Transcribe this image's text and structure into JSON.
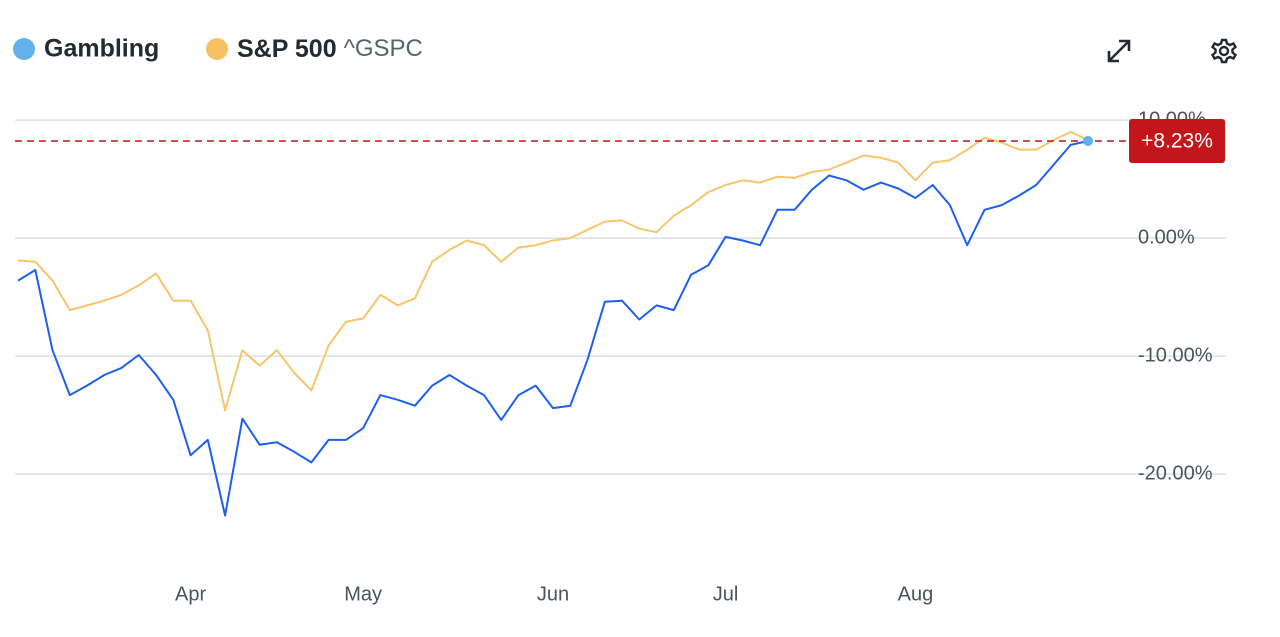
{
  "chart_data": {
    "type": "line",
    "categories": [
      null,
      null,
      null,
      null,
      null,
      null,
      null,
      null,
      null,
      null,
      "Apr",
      null,
      null,
      null,
      null,
      null,
      null,
      null,
      null,
      null,
      "May",
      null,
      null,
      null,
      null,
      null,
      null,
      null,
      null,
      null,
      null,
      "Jun",
      null,
      null,
      null,
      null,
      null,
      null,
      null,
      null,
      null,
      "Jul",
      null,
      null,
      null,
      null,
      null,
      null,
      null,
      null,
      null,
      null,
      "Aug",
      null,
      null,
      null,
      null,
      null,
      null,
      null,
      null,
      null,
      null
    ],
    "series": [
      {
        "name": "Gambling",
        "color": "#1f5ff0",
        "legend_color": "#62b1ea",
        "values": [
          -3.6,
          -2.7,
          -9.5,
          -13.3,
          -12.5,
          -11.6,
          -11.0,
          -9.9,
          -11.6,
          -13.7,
          -18.4,
          -17.1,
          -23.5,
          -15.3,
          -17.5,
          -17.3,
          -18.1,
          -19.0,
          -17.1,
          -17.1,
          -16.1,
          -13.3,
          -13.7,
          -14.2,
          -12.5,
          -11.6,
          -12.5,
          -13.3,
          -15.4,
          -13.3,
          -12.5,
          -14.4,
          -14.2,
          -10.3,
          -5.4,
          -5.3,
          -6.9,
          -5.7,
          -6.1,
          -3.1,
          -2.3,
          0.1,
          -0.2,
          -0.6,
          2.4,
          2.4,
          4.1,
          5.3,
          4.9,
          4.1,
          4.7,
          4.2,
          3.4,
          4.5,
          2.8,
          -0.6,
          2.4,
          2.8,
          3.6,
          4.5,
          6.2,
          7.9,
          8.23
        ]
      },
      {
        "name": "S&P 500",
        "symbol": "^GSPC",
        "color": "#f8c46c",
        "legend_color": "#f7c163",
        "values": [
          -1.9,
          -2.0,
          -3.6,
          -6.1,
          -5.7,
          -5.3,
          -4.8,
          -4.0,
          -3.0,
          -5.3,
          -5.3,
          -7.8,
          -14.6,
          -9.5,
          -10.8,
          -9.5,
          -11.4,
          -12.9,
          -9.1,
          -7.1,
          -6.8,
          -4.8,
          -5.7,
          -5.1,
          -2.0,
          -1.0,
          -0.2,
          -0.6,
          -2.0,
          -0.8,
          -0.6,
          -0.2,
          0.0,
          0.7,
          1.4,
          1.5,
          0.8,
          0.5,
          1.9,
          2.8,
          3.9,
          4.5,
          4.9,
          4.7,
          5.2,
          5.1,
          5.6,
          5.8,
          6.4,
          7.0,
          6.8,
          6.4,
          4.9,
          6.4,
          6.6,
          7.5,
          8.5,
          8.1,
          7.5,
          7.5,
          8.3,
          9.0,
          8.3
        ]
      }
    ],
    "ylim": [
      -26,
      11.7
    ],
    "yticks": [
      {
        "value": -20,
        "label": "-20.00%"
      },
      {
        "value": -10,
        "label": "-10.00%"
      },
      {
        "value": 0,
        "label": "0.00%"
      },
      {
        "value": 10,
        "label": "10.00%"
      }
    ],
    "grid": true,
    "last_value": {
      "value": 8.23,
      "label": "+8.23%",
      "color": "#c2161b"
    }
  }
}
